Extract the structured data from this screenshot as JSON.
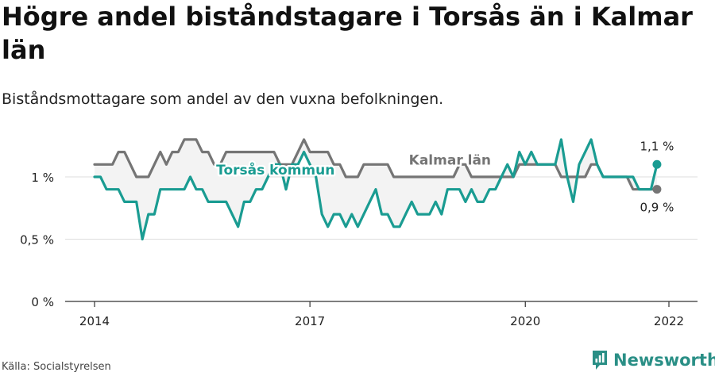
{
  "title": "Högre andel biståndstagare i Torsås än i Kalmar län",
  "subtitle": "Biståndsmottagare som andel av den vuxna befolkningen.",
  "source": "Källa: Socialstyrelsen",
  "brand": "Newsworthy",
  "colors": {
    "torsas": "#1a9c92",
    "kalmar": "#757575",
    "gap_fill": "#f3f3f3",
    "grid": "#dddddd"
  },
  "chart_data": {
    "type": "line",
    "ylim": [
      0,
      1.35
    ],
    "xlim": [
      2014,
      2022.4
    ],
    "y_ticks": [
      {
        "value": 0,
        "label": "0 %"
      },
      {
        "value": 0.5,
        "label": "0,5 %"
      },
      {
        "value": 1,
        "label": "1 %"
      }
    ],
    "x_ticks": [
      {
        "value": 2014,
        "label": "2014"
      },
      {
        "value": 2017,
        "label": "2017"
      },
      {
        "value": 2020,
        "label": "2020"
      },
      {
        "value": 2022,
        "label": "2022"
      }
    ],
    "x_start": 2014,
    "x_step": 0.08333333,
    "series": [
      {
        "name": "Torsås kommun",
        "end_label": "1,1 %",
        "values": [
          1.0,
          1.0,
          0.9,
          0.9,
          0.9,
          0.8,
          0.8,
          0.8,
          0.5,
          0.7,
          0.7,
          0.9,
          0.9,
          0.9,
          0.9,
          0.9,
          1.0,
          0.9,
          0.9,
          0.8,
          0.8,
          0.8,
          0.8,
          0.7,
          0.6,
          0.8,
          0.8,
          0.9,
          0.9,
          1.0,
          1.1,
          1.1,
          0.9,
          1.1,
          1.1,
          1.2,
          1.1,
          1.0,
          0.7,
          0.6,
          0.7,
          0.7,
          0.6,
          0.7,
          0.6,
          0.7,
          0.8,
          0.9,
          0.7,
          0.7,
          0.6,
          0.6,
          0.7,
          0.8,
          0.7,
          0.7,
          0.7,
          0.8,
          0.7,
          0.9,
          0.9,
          0.9,
          0.8,
          0.9,
          0.8,
          0.8,
          0.9,
          0.9,
          1.0,
          1.1,
          1.0,
          1.2,
          1.1,
          1.2,
          1.1,
          1.1,
          1.1,
          1.1,
          1.3,
          1.0,
          0.8,
          1.1,
          1.2,
          1.3,
          1.1,
          1.0,
          1.0,
          1.0,
          1.0,
          1.0,
          1.0,
          0.9,
          0.9,
          0.9,
          1.1
        ]
      },
      {
        "name": "Kalmar län",
        "end_label": "0,9 %",
        "values": [
          1.1,
          1.1,
          1.1,
          1.1,
          1.2,
          1.2,
          1.1,
          1.0,
          1.0,
          1.0,
          1.1,
          1.2,
          1.1,
          1.2,
          1.2,
          1.3,
          1.3,
          1.3,
          1.2,
          1.2,
          1.1,
          1.1,
          1.2,
          1.2,
          1.2,
          1.2,
          1.2,
          1.2,
          1.2,
          1.2,
          1.2,
          1.1,
          1.1,
          1.1,
          1.2,
          1.3,
          1.2,
          1.2,
          1.2,
          1.2,
          1.1,
          1.1,
          1.0,
          1.0,
          1.0,
          1.1,
          1.1,
          1.1,
          1.1,
          1.1,
          1.0,
          1.0,
          1.0,
          1.0,
          1.0,
          1.0,
          1.0,
          1.0,
          1.0,
          1.0,
          1.0,
          1.1,
          1.1,
          1.0,
          1.0,
          1.0,
          1.0,
          1.0,
          1.0,
          1.0,
          1.0,
          1.1,
          1.1,
          1.1,
          1.1,
          1.1,
          1.1,
          1.1,
          1.0,
          1.0,
          1.0,
          1.0,
          1.0,
          1.1,
          1.1,
          1.0,
          1.0,
          1.0,
          1.0,
          1.0,
          0.9,
          0.9,
          0.9,
          0.9,
          0.9
        ]
      }
    ]
  }
}
